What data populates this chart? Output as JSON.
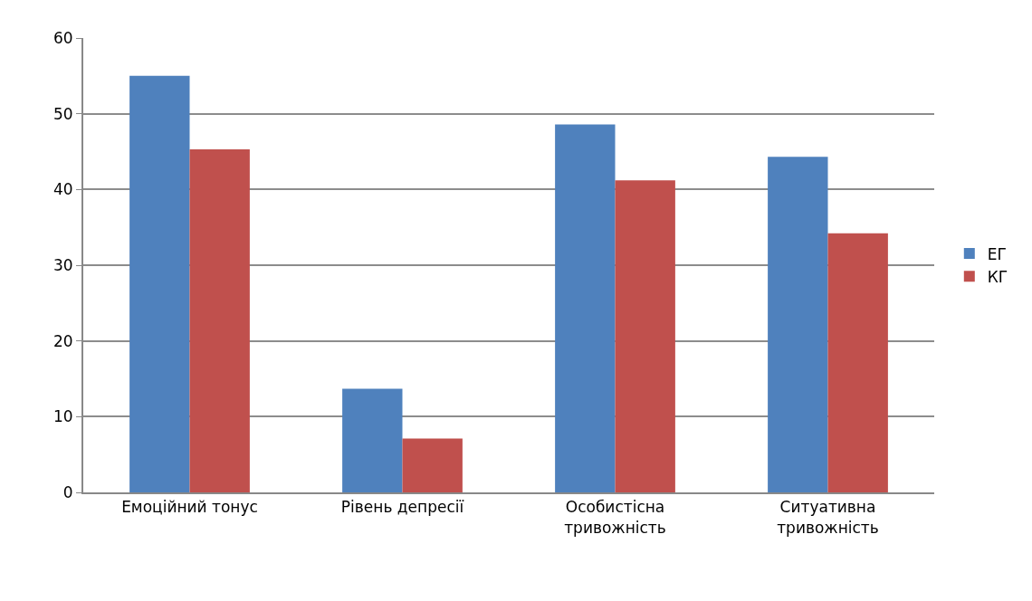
{
  "chart_data": {
    "type": "bar",
    "categories": [
      "Емоційний тонус",
      "Рівень депресії",
      "Особистісна тривожність",
      "Ситуативна тривожність"
    ],
    "series": [
      {
        "name": "ЕГ",
        "color": "#4f81bd",
        "values": [
          55.0,
          13.7,
          48.6,
          44.3
        ]
      },
      {
        "name": "КГ",
        "color": "#c0504d",
        "values": [
          45.3,
          7.1,
          41.2,
          34.2
        ]
      }
    ],
    "ylim": [
      0,
      60
    ],
    "yticks": [
      0,
      10,
      20,
      30,
      40,
      50,
      60
    ],
    "grid": "y",
    "legend": "right"
  }
}
